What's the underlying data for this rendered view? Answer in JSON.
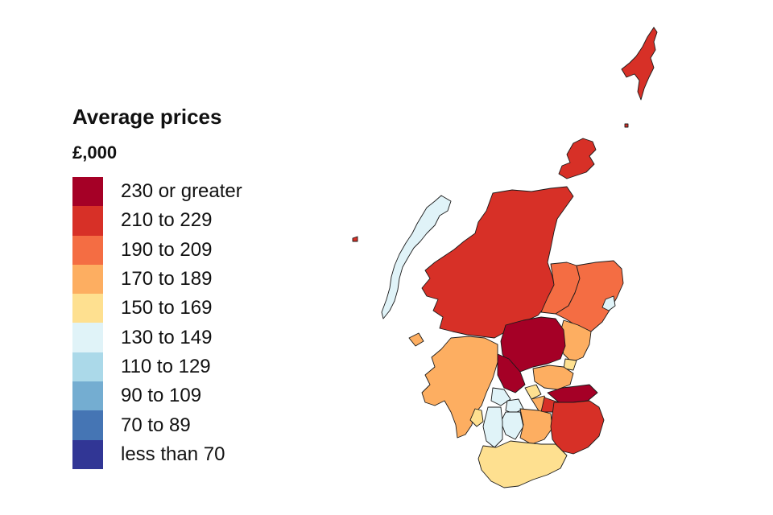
{
  "legend": {
    "title": "Average prices",
    "unit": "£,000",
    "items": [
      {
        "label": "230 or greater",
        "color": "#a50026"
      },
      {
        "label": "210 to 229",
        "color": "#d73027"
      },
      {
        "label": "190 to 209",
        "color": "#f46d43"
      },
      {
        "label": "170 to 189",
        "color": "#fdae61"
      },
      {
        "label": "150 to 169",
        "color": "#fee090"
      },
      {
        "label": "130 to 149",
        "color": "#e0f3f8"
      },
      {
        "label": "110 to 129",
        "color": "#abd9e9"
      },
      {
        "label": "90 to 109",
        "color": "#74add1"
      },
      {
        "label": "70 to 89",
        "color": "#4575b4"
      },
      {
        "label": "less than 70",
        "color": "#313695"
      }
    ]
  },
  "map": {
    "region": "Scotland",
    "areas": [
      {
        "id": "shetland",
        "band": 1
      },
      {
        "id": "orkney",
        "band": 1
      },
      {
        "id": "na-h-eileanan-siar",
        "band": 5
      },
      {
        "id": "highland",
        "band": 1
      },
      {
        "id": "moray",
        "band": 2
      },
      {
        "id": "aberdeenshire",
        "band": 2
      },
      {
        "id": "aberdeen-city",
        "band": 5
      },
      {
        "id": "angus",
        "band": 3
      },
      {
        "id": "dundee",
        "band": 4
      },
      {
        "id": "perth-and-kinross",
        "band": 0
      },
      {
        "id": "stirling",
        "band": 0
      },
      {
        "id": "fife",
        "band": 3
      },
      {
        "id": "argyll-and-bute",
        "band": 3
      },
      {
        "id": "west-dunbartonshire",
        "band": 5
      },
      {
        "id": "glasgow",
        "band": 5
      },
      {
        "id": "falkirk",
        "band": 4
      },
      {
        "id": "west-lothian",
        "band": 3
      },
      {
        "id": "edinburgh",
        "band": 0
      },
      {
        "id": "east-lothian",
        "band": 0
      },
      {
        "id": "midlothian",
        "band": 1
      },
      {
        "id": "north-lanarkshire",
        "band": 5
      },
      {
        "id": "east-ayrshire",
        "band": 5
      },
      {
        "id": "south-lanarkshire",
        "band": 3
      },
      {
        "id": "scottish-borders",
        "band": 1
      },
      {
        "id": "dumfries-and-galloway",
        "band": 4
      },
      {
        "id": "south-ayrshire",
        "band": 4
      }
    ]
  }
}
